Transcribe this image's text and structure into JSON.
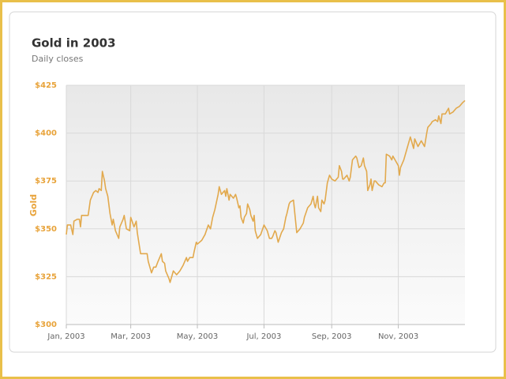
{
  "chart_data": {
    "type": "line",
    "title": "Gold in 2003",
    "subtitle": "Daily closes",
    "y_label": "Gold",
    "color": "#e2a94d",
    "grid": true,
    "xlim": [
      0,
      365
    ],
    "xticks": [
      {
        "value": 0,
        "label": "Jan, 2003"
      },
      {
        "value": 59,
        "label": "Mar, 2003"
      },
      {
        "value": 120,
        "label": "May, 2003"
      },
      {
        "value": 181,
        "label": "Jul, 2003"
      },
      {
        "value": 243,
        "label": "Sep, 2003"
      },
      {
        "value": 304,
        "label": "Nov, 2003"
      }
    ],
    "ylim": [
      300,
      425
    ],
    "yticks": [
      {
        "value": 300,
        "label": "$300"
      },
      {
        "value": 325,
        "label": "$325"
      },
      {
        "value": 350,
        "label": "$350"
      },
      {
        "value": 375,
        "label": "$375"
      },
      {
        "value": 400,
        "label": "$400"
      },
      {
        "value": 425,
        "label": "$425"
      }
    ],
    "x": [
      0,
      1,
      4,
      6,
      7,
      10,
      12,
      13,
      14,
      17,
      20,
      22,
      25,
      27,
      29,
      30,
      32,
      33,
      35,
      36,
      38,
      40,
      42,
      43,
      45,
      48,
      49,
      52,
      53,
      55,
      58,
      59,
      62,
      64,
      65,
      68,
      71,
      74,
      75,
      78,
      80,
      82,
      84,
      87,
      88,
      90,
      91,
      94,
      95,
      97,
      98,
      101,
      104,
      107,
      110,
      111,
      113,
      116,
      117,
      119,
      120,
      124,
      127,
      130,
      132,
      134,
      136,
      139,
      140,
      142,
      145,
      146,
      147,
      149,
      150,
      153,
      155,
      156,
      158,
      159,
      160,
      162,
      163,
      165,
      166,
      168,
      169,
      171,
      172,
      173,
      175,
      178,
      181,
      184,
      186,
      188,
      189,
      191,
      192,
      194,
      197,
      199,
      201,
      202,
      204,
      205,
      208,
      211,
      214,
      217,
      218,
      221,
      224,
      226,
      227,
      228,
      230,
      231,
      233,
      234,
      236,
      237,
      239,
      241,
      243,
      246,
      249,
      250,
      252,
      253,
      254,
      257,
      259,
      260,
      262,
      265,
      266,
      268,
      270,
      272,
      273,
      275,
      276,
      278,
      279,
      280,
      282,
      283,
      286,
      289,
      291,
      292,
      293,
      296,
      298,
      299,
      301,
      304,
      305,
      306,
      309,
      312,
      315,
      317,
      318,
      319,
      322,
      325,
      328,
      330,
      331,
      334,
      335,
      338,
      340,
      341,
      343,
      344,
      347,
      348,
      350,
      351,
      354,
      357,
      360,
      363,
      365
    ],
    "values": [
      347,
      352,
      352,
      347,
      354,
      355,
      355,
      351,
      357,
      357,
      357,
      365,
      369,
      370,
      369,
      371,
      370,
      380,
      375,
      371,
      367,
      358,
      352,
      355,
      349,
      345,
      351,
      355,
      357,
      350,
      349,
      356,
      351,
      354,
      348,
      337,
      337,
      337,
      333,
      327,
      330,
      330,
      333,
      337,
      333,
      332,
      328,
      324,
      322,
      326,
      328,
      326,
      328,
      331,
      335,
      333,
      335,
      335,
      338,
      343,
      342,
      344,
      347,
      352,
      350,
      356,
      360,
      368,
      372,
      368,
      370,
      367,
      371,
      365,
      368,
      366,
      368,
      366,
      361,
      362,
      356,
      353,
      356,
      358,
      363,
      360,
      357,
      354,
      357,
      349,
      345,
      347,
      352,
      349,
      345,
      345,
      346,
      349,
      348,
      343,
      348,
      350,
      356,
      358,
      363,
      364,
      365,
      348,
      350,
      353,
      356,
      361,
      363,
      367,
      363,
      361,
      367,
      361,
      359,
      365,
      363,
      365,
      374,
      378,
      376,
      375,
      377,
      383,
      380,
      376,
      376,
      378,
      375,
      377,
      386,
      388,
      387,
      382,
      383,
      387,
      383,
      380,
      370,
      373,
      376,
      370,
      375,
      375,
      373,
      372,
      374,
      374,
      389,
      388,
      386,
      388,
      386,
      383,
      378,
      382,
      386,
      392,
      398,
      394,
      392,
      397,
      393,
      396,
      393,
      400,
      403,
      405,
      406,
      407,
      406,
      409,
      405,
      410,
      410,
      411,
      413,
      410,
      411,
      413,
      414,
      416,
      417
    ]
  }
}
